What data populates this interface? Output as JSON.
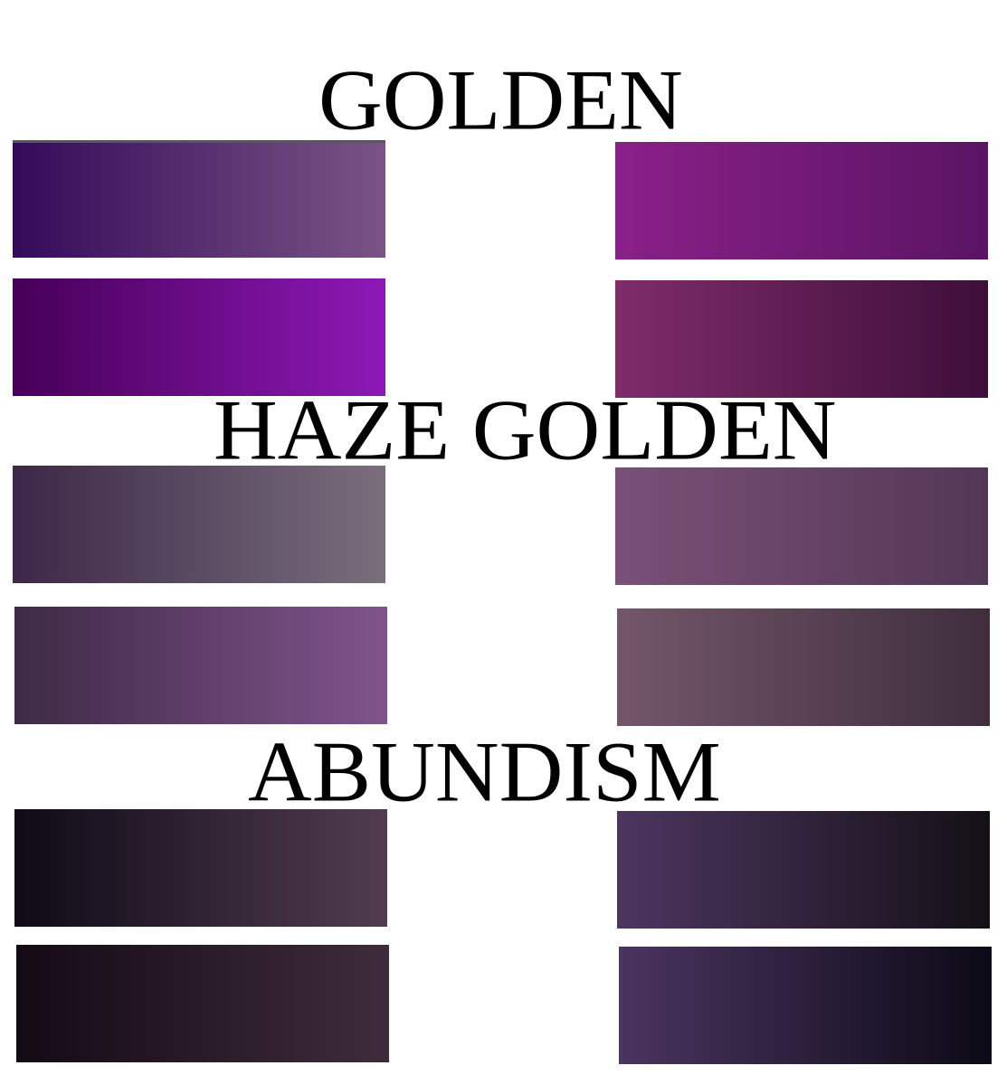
{
  "headings": {
    "golden": "GOLDEN",
    "haze_golden": "HAZE GOLDEN",
    "abundism": "ABUNDISM"
  },
  "swatches": [
    {
      "section": "golden",
      "from": "#350a5a",
      "to": "#7a5484"
    },
    {
      "section": "golden",
      "from": "#8a2088",
      "to": "#5a1464"
    },
    {
      "section": "golden",
      "from": "#460058",
      "to": "#8e18b6"
    },
    {
      "section": "golden",
      "from": "#7e2c6a",
      "to": "#3e0e3a"
    },
    {
      "section": "haze_golden",
      "from": "#3c2848",
      "to": "#7a6e7c"
    },
    {
      "section": "haze_golden",
      "from": "#7a5078",
      "to": "#533756"
    },
    {
      "section": "haze_golden",
      "from": "#3e2a46",
      "to": "#80548c"
    },
    {
      "section": "haze_golden",
      "from": "#735669",
      "to": "#3f2e3d"
    },
    {
      "section": "abundism",
      "from": "#0e0a16",
      "to": "#523c50"
    },
    {
      "section": "abundism",
      "from": "#4c3660",
      "to": "#151016"
    },
    {
      "section": "abundism",
      "from": "#140a14",
      "to": "#3e2c3c"
    },
    {
      "section": "abundism",
      "from": "#4a3460",
      "to": "#0c0a16"
    }
  ]
}
